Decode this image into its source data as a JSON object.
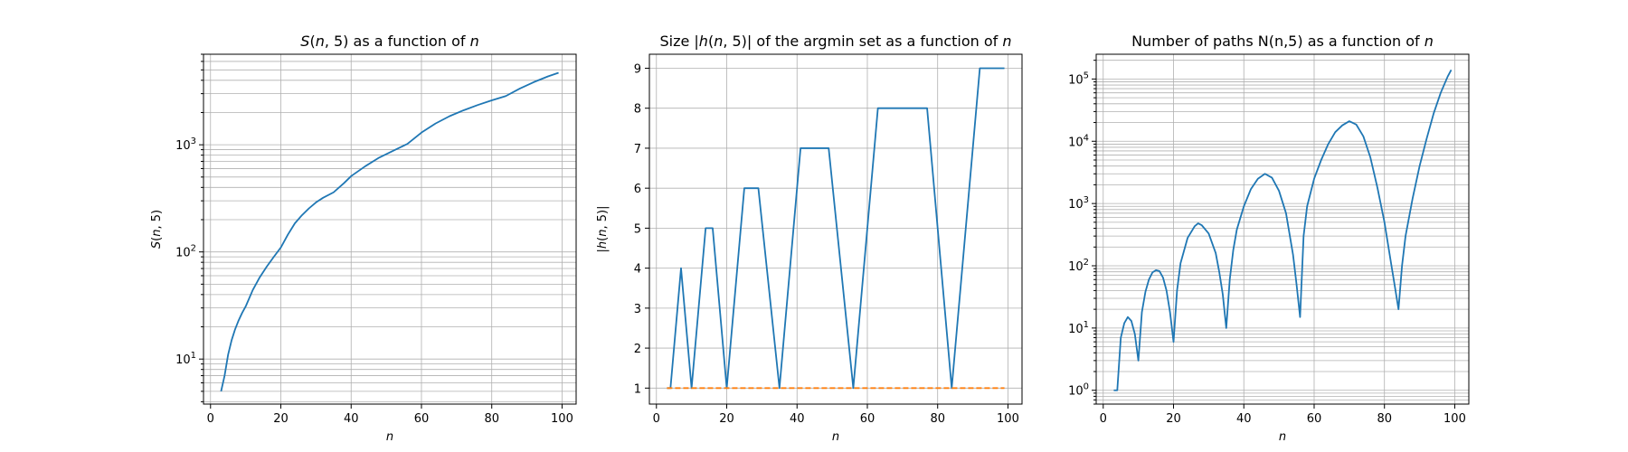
{
  "chart_data": [
    {
      "type": "line",
      "title": "S(n,5) as a function of n",
      "xlabel": "n",
      "ylabel": "S(n, 5)",
      "yscale": "log",
      "xlim": [
        -2,
        104
      ],
      "ylim": [
        3.8,
        7000
      ],
      "xticks": [
        "0",
        "20",
        "40",
        "60",
        "80",
        "100"
      ],
      "yticks": [
        "10^1",
        "10^2",
        "10^3"
      ],
      "grid": true,
      "series": [
        {
          "color": "#1f77b4",
          "x": [
            3,
            4,
            5,
            6,
            7,
            8,
            9,
            10,
            12,
            14,
            16,
            18,
            20,
            22,
            24,
            26,
            28,
            30,
            32,
            35,
            38,
            40,
            44,
            48,
            52,
            56,
            60,
            64,
            68,
            72,
            76,
            80,
            84,
            88,
            92,
            96,
            99
          ],
          "values": [
            5,
            7,
            11,
            15,
            19,
            23,
            27,
            31,
            44,
            58,
            73,
            90,
            110,
            145,
            185,
            220,
            255,
            290,
            320,
            360,
            440,
            510,
            630,
            760,
            880,
            1020,
            1300,
            1580,
            1850,
            2100,
            2350,
            2600,
            2850,
            3350,
            3850,
            4350,
            4700
          ]
        }
      ]
    },
    {
      "type": "line",
      "title": "Size |h(n,5)| of the argmin set as a function of n",
      "xlabel": "n",
      "ylabel": "|h(n, 5)|",
      "yscale": "linear",
      "xlim": [
        -2,
        104
      ],
      "ylim": [
        0.6,
        9.35
      ],
      "xticks": [
        "0",
        "20",
        "40",
        "60",
        "80",
        "100"
      ],
      "yticks": [
        "1",
        "2",
        "3",
        "4",
        "5",
        "6",
        "7",
        "8",
        "9"
      ],
      "grid": true,
      "series": [
        {
          "color": "#1f77b4",
          "x": [
            3,
            4,
            7,
            10,
            14,
            16,
            20,
            25,
            29,
            35,
            41,
            49,
            56,
            63,
            77,
            84,
            92,
            99
          ],
          "values": [
            1,
            1,
            4,
            1,
            5,
            5,
            1,
            6,
            6,
            1,
            7,
            7,
            1,
            8,
            8,
            1,
            9,
            9
          ]
        },
        {
          "color": "#ff7f0e",
          "dashed": true,
          "x": [
            3,
            99
          ],
          "values": [
            1,
            1
          ]
        }
      ]
    },
    {
      "type": "line",
      "title": "Number of paths N(n,5) as a function of n",
      "xlabel": "n",
      "ylabel": "",
      "yscale": "log",
      "xlim": [
        -2,
        104
      ],
      "ylim": [
        0.6,
        250000
      ],
      "xticks": [
        "0",
        "20",
        "40",
        "60",
        "80",
        "100"
      ],
      "yticks": [
        "10^0",
        "10^1",
        "10^2",
        "10^3",
        "10^4",
        "10^5"
      ],
      "grid": true,
      "series": [
        {
          "color": "#1f77b4",
          "x": [
            3,
            4,
            5,
            6,
            7,
            8,
            9,
            10,
            11,
            12,
            13,
            14,
            15,
            16,
            17,
            18,
            19,
            20,
            21,
            22,
            24,
            26,
            27,
            28,
            30,
            32,
            33,
            34,
            35,
            36,
            37,
            38,
            40,
            42,
            44,
            46,
            48,
            50,
            52,
            54,
            55,
            56,
            57,
            58,
            60,
            62,
            64,
            66,
            68,
            70,
            72,
            74,
            76,
            78,
            80,
            82,
            83,
            84,
            85,
            86,
            88,
            90,
            92,
            94,
            96,
            98,
            99
          ],
          "values": [
            1,
            1,
            7,
            12,
            15,
            13,
            8,
            3,
            18,
            38,
            60,
            78,
            85,
            82,
            65,
            40,
            18,
            6,
            40,
            110,
            280,
            430,
            480,
            450,
            330,
            160,
            80,
            35,
            10,
            60,
            180,
            380,
            900,
            1700,
            2500,
            3000,
            2600,
            1600,
            700,
            150,
            50,
            15,
            300,
            900,
            2500,
            5000,
            9000,
            14000,
            18000,
            21000,
            18500,
            12000,
            5500,
            1800,
            500,
            100,
            45,
            20,
            100,
            300,
            1200,
            4000,
            11000,
            28000,
            60000,
            110000,
            140000
          ]
        }
      ]
    }
  ]
}
